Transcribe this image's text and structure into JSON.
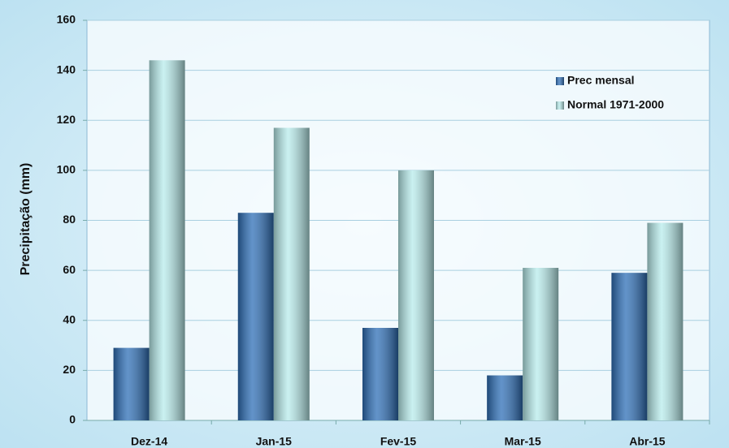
{
  "chart_data": {
    "type": "bar",
    "y_label": "Precipitação (mm)",
    "categories": [
      "Dez-14",
      "Jan-15",
      "Fev-15",
      "Mar-15",
      "Abr-15"
    ],
    "series": [
      {
        "name": "Prec mensal",
        "color": "#2e6fb7",
        "values": [
          29,
          83,
          37,
          18,
          59
        ]
      },
      {
        "name": "Normal 1971-2000",
        "color": "#b8ecec",
        "values": [
          144,
          117,
          100,
          61,
          79
        ]
      }
    ],
    "ylim": [
      0,
      160
    ],
    "yticks": [
      0,
      20,
      40,
      60,
      80,
      100,
      120,
      140,
      160
    ],
    "grid": true,
    "legend": "top-right"
  }
}
